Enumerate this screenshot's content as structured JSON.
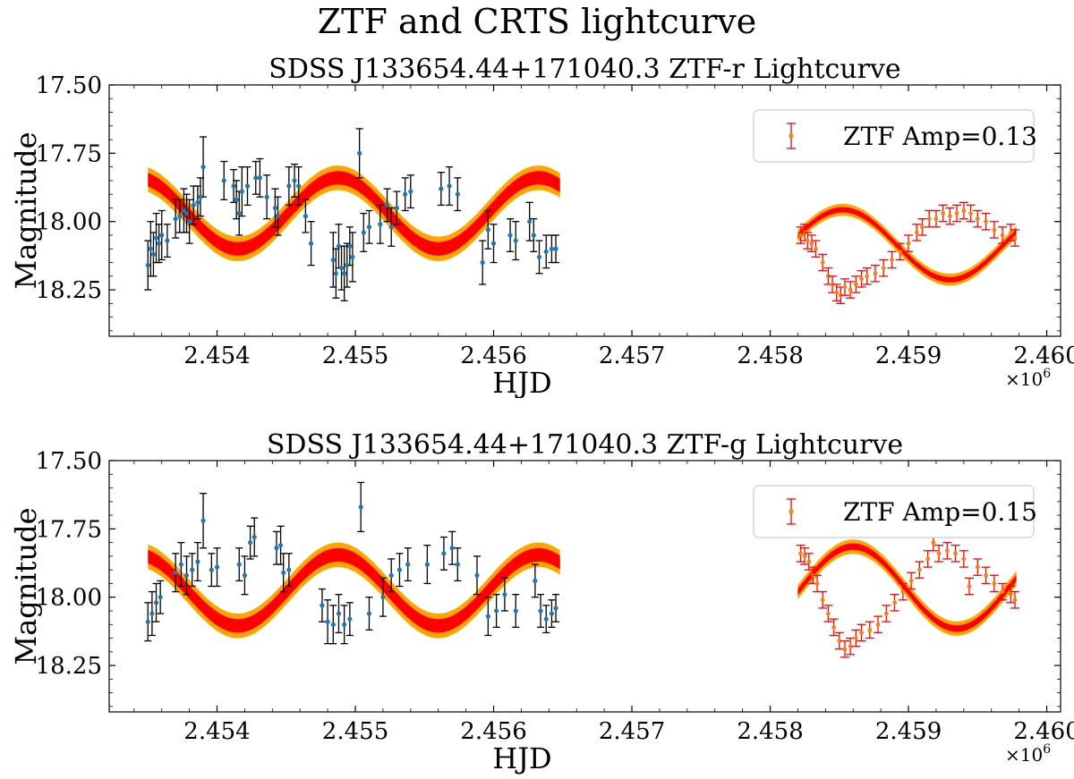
{
  "figure": {
    "suptitle": "ZTF and CRTS lightcurve"
  },
  "colors": {
    "band_outer": "#FFA500",
    "band_inner": "#FF0000",
    "crts_points": "#1f77b4",
    "crts_errorbars": "#000000",
    "ztf_points": "#ff7f0e",
    "ztf_errorbars": "#ff0000"
  },
  "chart_data": [
    {
      "type": "scatter",
      "title": "SDSS J133654.44+171040.3 ZTF-r Lightcurve",
      "xlabel": "HJD",
      "ylabel": "Magnitude",
      "x_offset_label": "×10",
      "x_offset_exp": "6",
      "xlim": [
        2453220,
        2460100
      ],
      "ylim": [
        18.42,
        17.5
      ],
      "xticks": [
        2454000,
        2455000,
        2456000,
        2457000,
        2458000,
        2459000,
        2460000
      ],
      "xtick_labels": [
        "2.454",
        "2.455",
        "2.456",
        "2.457",
        "2.458",
        "2.459",
        "2.460"
      ],
      "yticks": [
        17.5,
        17.75,
        18.0,
        18.25
      ],
      "ytick_labels": [
        "17.50",
        "17.75",
        "18.00",
        "18.25"
      ],
      "legend": {
        "label": "ZTF Amp=0.13",
        "location": "upper right"
      },
      "model": {
        "mean": 17.97,
        "amplitude": 0.13,
        "period_days": 1450,
        "phase_jd": 2454150,
        "band_half_width": 0.045
      },
      "model_x_range": [
        2453500,
        2456480
      ],
      "ztf_model": {
        "mean": 18.085,
        "amplitude": 0.128,
        "period_days": 1550,
        "phase_jd": 2459300,
        "band_half_width": 0.01,
        "x_range": [
          2458200,
          2459780
        ]
      },
      "crts_points": [
        {
          "x": 2453500,
          "y": 18.16,
          "err": 0.09
        },
        {
          "x": 2453520,
          "y": 18.1,
          "err": 0.1
        },
        {
          "x": 2453540,
          "y": 18.12,
          "err": 0.08
        },
        {
          "x": 2453560,
          "y": 18.06,
          "err": 0.09
        },
        {
          "x": 2453580,
          "y": 18.08,
          "err": 0.07
        },
        {
          "x": 2453600,
          "y": 18.05,
          "err": 0.09
        },
        {
          "x": 2453640,
          "y": 18.07,
          "err": 0.06
        },
        {
          "x": 2453700,
          "y": 17.99,
          "err": 0.07
        },
        {
          "x": 2453730,
          "y": 17.98,
          "err": 0.06
        },
        {
          "x": 2453760,
          "y": 17.96,
          "err": 0.08
        },
        {
          "x": 2453780,
          "y": 17.97,
          "err": 0.07
        },
        {
          "x": 2453800,
          "y": 18.0,
          "err": 0.08
        },
        {
          "x": 2453830,
          "y": 17.94,
          "err": 0.07
        },
        {
          "x": 2453860,
          "y": 17.93,
          "err": 0.06
        },
        {
          "x": 2453880,
          "y": 17.91,
          "err": 0.07
        },
        {
          "x": 2453900,
          "y": 17.8,
          "err": 0.11
        },
        {
          "x": 2454050,
          "y": 17.85,
          "err": 0.07
        },
        {
          "x": 2454120,
          "y": 17.87,
          "err": 0.06
        },
        {
          "x": 2454140,
          "y": 17.92,
          "err": 0.07
        },
        {
          "x": 2454160,
          "y": 17.97,
          "err": 0.08
        },
        {
          "x": 2454180,
          "y": 17.89,
          "err": 0.09
        },
        {
          "x": 2454220,
          "y": 17.87,
          "err": 0.07
        },
        {
          "x": 2454280,
          "y": 17.84,
          "err": 0.06
        },
        {
          "x": 2454310,
          "y": 17.84,
          "err": 0.07
        },
        {
          "x": 2454360,
          "y": 17.91,
          "err": 0.08
        },
        {
          "x": 2454420,
          "y": 17.95,
          "err": 0.07
        },
        {
          "x": 2454440,
          "y": 17.98,
          "err": 0.07
        },
        {
          "x": 2454520,
          "y": 17.87,
          "err": 0.07
        },
        {
          "x": 2454560,
          "y": 17.85,
          "err": 0.06
        },
        {
          "x": 2454590,
          "y": 17.87,
          "err": 0.07
        },
        {
          "x": 2454640,
          "y": 17.98,
          "err": 0.06
        },
        {
          "x": 2454680,
          "y": 18.08,
          "err": 0.08
        },
        {
          "x": 2454840,
          "y": 18.14,
          "err": 0.1
        },
        {
          "x": 2454860,
          "y": 18.19,
          "err": 0.09
        },
        {
          "x": 2454880,
          "y": 18.09,
          "err": 0.08
        },
        {
          "x": 2454900,
          "y": 18.17,
          "err": 0.08
        },
        {
          "x": 2454920,
          "y": 18.19,
          "err": 0.1
        },
        {
          "x": 2454940,
          "y": 18.16,
          "err": 0.08
        },
        {
          "x": 2454960,
          "y": 18.09,
          "err": 0.07
        },
        {
          "x": 2454980,
          "y": 18.13,
          "err": 0.09
        },
        {
          "x": 2455030,
          "y": 17.75,
          "err": 0.09
        },
        {
          "x": 2455060,
          "y": 18.04,
          "err": 0.07
        },
        {
          "x": 2455100,
          "y": 18.02,
          "err": 0.06
        },
        {
          "x": 2455180,
          "y": 18.01,
          "err": 0.07
        },
        {
          "x": 2455230,
          "y": 17.94,
          "err": 0.06
        },
        {
          "x": 2455260,
          "y": 18.02,
          "err": 0.07
        },
        {
          "x": 2455300,
          "y": 17.95,
          "err": 0.06
        },
        {
          "x": 2455360,
          "y": 17.9,
          "err": 0.06
        },
        {
          "x": 2455400,
          "y": 17.89,
          "err": 0.06
        },
        {
          "x": 2455620,
          "y": 17.88,
          "err": 0.06
        },
        {
          "x": 2455680,
          "y": 17.87,
          "err": 0.07
        },
        {
          "x": 2455740,
          "y": 17.9,
          "err": 0.06
        },
        {
          "x": 2455920,
          "y": 18.15,
          "err": 0.08
        },
        {
          "x": 2455960,
          "y": 18.03,
          "err": 0.07
        },
        {
          "x": 2456000,
          "y": 18.08,
          "err": 0.07
        },
        {
          "x": 2456120,
          "y": 18.05,
          "err": 0.06
        },
        {
          "x": 2456160,
          "y": 18.07,
          "err": 0.07
        },
        {
          "x": 2456260,
          "y": 18.0,
          "err": 0.07
        },
        {
          "x": 2456290,
          "y": 18.05,
          "err": 0.06
        },
        {
          "x": 2456330,
          "y": 18.13,
          "err": 0.06
        },
        {
          "x": 2456380,
          "y": 18.11,
          "err": 0.06
        },
        {
          "x": 2456420,
          "y": 18.1,
          "err": 0.05
        },
        {
          "x": 2456450,
          "y": 18.1,
          "err": 0.05
        }
      ],
      "ztf_points": [
        {
          "x": 2458220,
          "y": 18.05,
          "err": 0.03
        },
        {
          "x": 2458250,
          "y": 18.04,
          "err": 0.03
        },
        {
          "x": 2458270,
          "y": 18.07,
          "err": 0.03
        },
        {
          "x": 2458300,
          "y": 18.08,
          "err": 0.03
        },
        {
          "x": 2458330,
          "y": 18.1,
          "err": 0.03
        },
        {
          "x": 2458380,
          "y": 18.15,
          "err": 0.03
        },
        {
          "x": 2458420,
          "y": 18.2,
          "err": 0.03
        },
        {
          "x": 2458450,
          "y": 18.23,
          "err": 0.03
        },
        {
          "x": 2458480,
          "y": 18.26,
          "err": 0.03
        },
        {
          "x": 2458510,
          "y": 18.27,
          "err": 0.03
        },
        {
          "x": 2458540,
          "y": 18.24,
          "err": 0.03
        },
        {
          "x": 2458580,
          "y": 18.25,
          "err": 0.03
        },
        {
          "x": 2458620,
          "y": 18.23,
          "err": 0.03
        },
        {
          "x": 2458660,
          "y": 18.21,
          "err": 0.03
        },
        {
          "x": 2458700,
          "y": 18.2,
          "err": 0.03
        },
        {
          "x": 2458760,
          "y": 18.19,
          "err": 0.03
        },
        {
          "x": 2458820,
          "y": 18.17,
          "err": 0.03
        },
        {
          "x": 2458880,
          "y": 18.14,
          "err": 0.03
        },
        {
          "x": 2458940,
          "y": 18.11,
          "err": 0.03
        },
        {
          "x": 2459000,
          "y": 18.08,
          "err": 0.03
        },
        {
          "x": 2459060,
          "y": 18.04,
          "err": 0.03
        },
        {
          "x": 2459100,
          "y": 18.02,
          "err": 0.03
        },
        {
          "x": 2459150,
          "y": 17.99,
          "err": 0.03
        },
        {
          "x": 2459200,
          "y": 17.99,
          "err": 0.03
        },
        {
          "x": 2459250,
          "y": 17.97,
          "err": 0.03
        },
        {
          "x": 2459300,
          "y": 17.98,
          "err": 0.03
        },
        {
          "x": 2459350,
          "y": 17.97,
          "err": 0.03
        },
        {
          "x": 2459400,
          "y": 17.96,
          "err": 0.03
        },
        {
          "x": 2459450,
          "y": 17.97,
          "err": 0.03
        },
        {
          "x": 2459500,
          "y": 17.99,
          "err": 0.03
        },
        {
          "x": 2459560,
          "y": 18.0,
          "err": 0.03
        },
        {
          "x": 2459620,
          "y": 18.03,
          "err": 0.03
        },
        {
          "x": 2459680,
          "y": 18.05,
          "err": 0.03
        },
        {
          "x": 2459740,
          "y": 18.04,
          "err": 0.03
        },
        {
          "x": 2459770,
          "y": 18.06,
          "err": 0.03
        }
      ]
    },
    {
      "type": "scatter",
      "title": "SDSS J133654.44+171040.3 ZTF-g Lightcurve",
      "xlabel": "HJD",
      "ylabel": "Magnitude",
      "x_offset_label": "×10",
      "x_offset_exp": "6",
      "xlim": [
        2453220,
        2460100
      ],
      "ylim": [
        18.42,
        17.5
      ],
      "xticks": [
        2454000,
        2455000,
        2456000,
        2457000,
        2458000,
        2459000,
        2460000
      ],
      "xtick_labels": [
        "2.454",
        "2.455",
        "2.456",
        "2.457",
        "2.458",
        "2.459",
        "2.460"
      ],
      "yticks": [
        17.5,
        17.75,
        18.0,
        18.25
      ],
      "ytick_labels": [
        "17.50",
        "17.75",
        "18.00",
        "18.25"
      ],
      "legend": {
        "label": "ZTF Amp=0.15",
        "location": "upper right"
      },
      "model": {
        "mean": 17.975,
        "amplitude": 0.13,
        "period_days": 1450,
        "phase_jd": 2454150,
        "band_half_width": 0.045
      },
      "model_x_range": [
        2453500,
        2456480
      ],
      "ztf_model": {
        "mean": 17.965,
        "amplitude": 0.15,
        "period_days": 1500,
        "phase_jd": 2459350,
        "band_half_width": 0.012,
        "x_range": [
          2458200,
          2459780
        ]
      },
      "crts_points": [
        {
          "x": 2453500,
          "y": 18.09,
          "err": 0.07
        },
        {
          "x": 2453530,
          "y": 18.06,
          "err": 0.08
        },
        {
          "x": 2453560,
          "y": 18.02,
          "err": 0.07
        },
        {
          "x": 2453590,
          "y": 18.0,
          "err": 0.06
        },
        {
          "x": 2453700,
          "y": 17.91,
          "err": 0.07
        },
        {
          "x": 2453740,
          "y": 17.88,
          "err": 0.08
        },
        {
          "x": 2453780,
          "y": 17.92,
          "err": 0.07
        },
        {
          "x": 2453820,
          "y": 17.9,
          "err": 0.06
        },
        {
          "x": 2453860,
          "y": 17.87,
          "err": 0.07
        },
        {
          "x": 2453900,
          "y": 17.72,
          "err": 0.1
        },
        {
          "x": 2453960,
          "y": 17.9,
          "err": 0.06
        },
        {
          "x": 2454000,
          "y": 17.89,
          "err": 0.07
        },
        {
          "x": 2454160,
          "y": 17.88,
          "err": 0.06
        },
        {
          "x": 2454200,
          "y": 17.92,
          "err": 0.07
        },
        {
          "x": 2454240,
          "y": 17.8,
          "err": 0.06
        },
        {
          "x": 2454270,
          "y": 17.78,
          "err": 0.07
        },
        {
          "x": 2454430,
          "y": 17.82,
          "err": 0.06
        },
        {
          "x": 2454460,
          "y": 17.81,
          "err": 0.07
        },
        {
          "x": 2454480,
          "y": 17.91,
          "err": 0.07
        },
        {
          "x": 2454520,
          "y": 17.9,
          "err": 0.06
        },
        {
          "x": 2454760,
          "y": 18.03,
          "err": 0.06
        },
        {
          "x": 2454800,
          "y": 18.09,
          "err": 0.08
        },
        {
          "x": 2454840,
          "y": 18.1,
          "err": 0.07
        },
        {
          "x": 2454880,
          "y": 18.06,
          "err": 0.07
        },
        {
          "x": 2454920,
          "y": 18.1,
          "err": 0.07
        },
        {
          "x": 2454960,
          "y": 18.08,
          "err": 0.06
        },
        {
          "x": 2455040,
          "y": 17.67,
          "err": 0.09
        },
        {
          "x": 2455100,
          "y": 18.06,
          "err": 0.06
        },
        {
          "x": 2455200,
          "y": 18.0,
          "err": 0.07
        },
        {
          "x": 2455260,
          "y": 17.92,
          "err": 0.06
        },
        {
          "x": 2455320,
          "y": 17.9,
          "err": 0.06
        },
        {
          "x": 2455380,
          "y": 17.88,
          "err": 0.06
        },
        {
          "x": 2455520,
          "y": 17.88,
          "err": 0.07
        },
        {
          "x": 2455640,
          "y": 17.84,
          "err": 0.06
        },
        {
          "x": 2455700,
          "y": 17.82,
          "err": 0.06
        },
        {
          "x": 2455740,
          "y": 17.88,
          "err": 0.06
        },
        {
          "x": 2455880,
          "y": 17.92,
          "err": 0.07
        },
        {
          "x": 2455960,
          "y": 18.07,
          "err": 0.07
        },
        {
          "x": 2456020,
          "y": 18.05,
          "err": 0.06
        },
        {
          "x": 2456080,
          "y": 17.99,
          "err": 0.06
        },
        {
          "x": 2456160,
          "y": 18.05,
          "err": 0.06
        },
        {
          "x": 2456300,
          "y": 17.94,
          "err": 0.06
        },
        {
          "x": 2456340,
          "y": 18.05,
          "err": 0.06
        },
        {
          "x": 2456380,
          "y": 18.08,
          "err": 0.05
        },
        {
          "x": 2456420,
          "y": 18.06,
          "err": 0.05
        },
        {
          "x": 2456450,
          "y": 18.04,
          "err": 0.05
        }
      ],
      "ztf_points": [
        {
          "x": 2458220,
          "y": 17.84,
          "err": 0.03
        },
        {
          "x": 2458250,
          "y": 17.85,
          "err": 0.03
        },
        {
          "x": 2458280,
          "y": 17.87,
          "err": 0.03
        },
        {
          "x": 2458310,
          "y": 17.92,
          "err": 0.03
        },
        {
          "x": 2458340,
          "y": 17.95,
          "err": 0.03
        },
        {
          "x": 2458380,
          "y": 18.01,
          "err": 0.03
        },
        {
          "x": 2458420,
          "y": 18.06,
          "err": 0.03
        },
        {
          "x": 2458460,
          "y": 18.11,
          "err": 0.03
        },
        {
          "x": 2458500,
          "y": 18.16,
          "err": 0.03
        },
        {
          "x": 2458540,
          "y": 18.19,
          "err": 0.03
        },
        {
          "x": 2458580,
          "y": 18.18,
          "err": 0.03
        },
        {
          "x": 2458620,
          "y": 18.15,
          "err": 0.03
        },
        {
          "x": 2458660,
          "y": 18.13,
          "err": 0.03
        },
        {
          "x": 2458720,
          "y": 18.12,
          "err": 0.03
        },
        {
          "x": 2458780,
          "y": 18.1,
          "err": 0.03
        },
        {
          "x": 2458840,
          "y": 18.06,
          "err": 0.03
        },
        {
          "x": 2458900,
          "y": 18.02,
          "err": 0.03
        },
        {
          "x": 2458960,
          "y": 17.98,
          "err": 0.03
        },
        {
          "x": 2459020,
          "y": 17.94,
          "err": 0.03
        },
        {
          "x": 2459080,
          "y": 17.9,
          "err": 0.03
        },
        {
          "x": 2459140,
          "y": 17.86,
          "err": 0.03
        },
        {
          "x": 2459180,
          "y": 17.8,
          "err": 0.03
        },
        {
          "x": 2459220,
          "y": 17.84,
          "err": 0.03
        },
        {
          "x": 2459280,
          "y": 17.83,
          "err": 0.03
        },
        {
          "x": 2459340,
          "y": 17.84,
          "err": 0.03
        },
        {
          "x": 2459400,
          "y": 17.86,
          "err": 0.03
        },
        {
          "x": 2459440,
          "y": 17.96,
          "err": 0.03
        },
        {
          "x": 2459500,
          "y": 17.89,
          "err": 0.03
        },
        {
          "x": 2459560,
          "y": 17.92,
          "err": 0.03
        },
        {
          "x": 2459620,
          "y": 17.95,
          "err": 0.03
        },
        {
          "x": 2459680,
          "y": 17.98,
          "err": 0.03
        },
        {
          "x": 2459740,
          "y": 17.99,
          "err": 0.03
        },
        {
          "x": 2459770,
          "y": 18.01,
          "err": 0.03
        }
      ]
    }
  ]
}
